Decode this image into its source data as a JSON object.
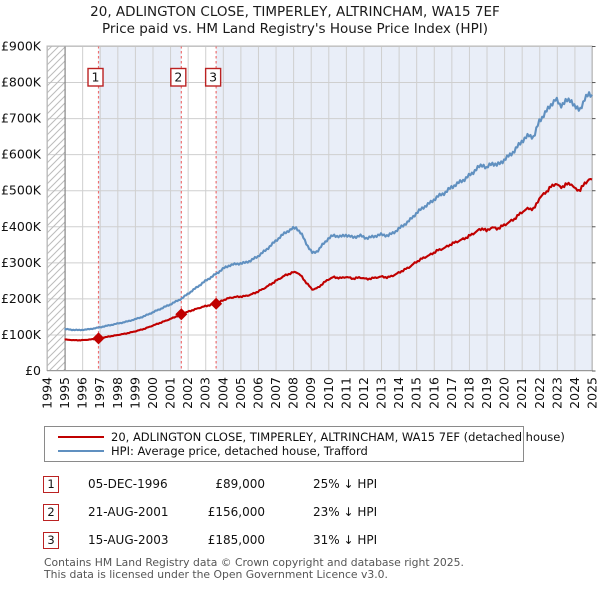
{
  "title": {
    "line1": "20, ADLINGTON CLOSE, TIMPERLEY, ALTRINCHAM, WA15 7EF",
    "line2": "Price paid vs. HM Land Registry's House Price Index (HPI)"
  },
  "chart_data": {
    "type": "line",
    "title": "20, ADLINGTON CLOSE, TIMPERLEY, ALTRINCHAM, WA15 7EF",
    "subtitle": "Price paid vs. HM Land Registry's House Price Index (HPI)",
    "x_axis": {
      "range": [
        1994,
        2025
      ],
      "ticks": [
        1994,
        1995,
        1996,
        1997,
        1998,
        1999,
        2000,
        2001,
        2002,
        2003,
        2004,
        2005,
        2006,
        2007,
        2008,
        2009,
        2010,
        2011,
        2012,
        2013,
        2014,
        2015,
        2016,
        2017,
        2018,
        2019,
        2020,
        2021,
        2022,
        2023,
        2024,
        2025
      ]
    },
    "y_axis": {
      "range": [
        0,
        900000
      ],
      "tick_values": [
        0,
        100000,
        200000,
        300000,
        400000,
        500000,
        600000,
        700000,
        800000,
        900000
      ],
      "tick_labels": [
        "£0",
        "£100K",
        "£200K",
        "£300K",
        "£400K",
        "£500K",
        "£600K",
        "£700K",
        "£800K",
        "£900K"
      ]
    },
    "grid": true,
    "legend_position": "below",
    "series": [
      {
        "name": "20, ADLINGTON CLOSE, TIMPERLEY, ALTRINCHAM, WA15 7EF (detached house)",
        "role": "price-paid",
        "color": "#c00000"
      },
      {
        "name": "HPI: Average price, detached house, Trafford",
        "role": "hpi",
        "color": "#6090c0",
        "anchors_year_value": [
          [
            1995.0,
            115000
          ],
          [
            1995.4,
            113000
          ],
          [
            1995.8,
            112000
          ],
          [
            1996.2,
            113500
          ],
          [
            1996.6,
            116000
          ],
          [
            1996.93,
            119000
          ],
          [
            1997.4,
            124000
          ],
          [
            1998.0,
            130000
          ],
          [
            1998.5,
            135000
          ],
          [
            1999.0,
            142000
          ],
          [
            1999.5,
            150000
          ],
          [
            2000.0,
            161000
          ],
          [
            2000.5,
            172000
          ],
          [
            2001.0,
            183000
          ],
          [
            2001.64,
            199000
          ],
          [
            2002.0,
            212000
          ],
          [
            2002.5,
            230000
          ],
          [
            2003.0,
            248000
          ],
          [
            2003.62,
            268000
          ],
          [
            2004.0,
            282000
          ],
          [
            2004.4,
            292000
          ],
          [
            2004.8,
            296000
          ],
          [
            2005.2,
            298000
          ],
          [
            2005.6,
            305000
          ],
          [
            2006.0,
            317000
          ],
          [
            2006.4,
            332000
          ],
          [
            2006.8,
            350000
          ],
          [
            2007.2,
            368000
          ],
          [
            2007.6,
            384000
          ],
          [
            2008.0,
            394000
          ],
          [
            2008.2,
            396000
          ],
          [
            2008.5,
            376000
          ],
          [
            2008.8,
            348000
          ],
          [
            2009.1,
            325000
          ],
          [
            2009.4,
            332000
          ],
          [
            2009.7,
            350000
          ],
          [
            2010.0,
            366000
          ],
          [
            2010.3,
            375000
          ],
          [
            2010.7,
            371000
          ],
          [
            2011.0,
            376000
          ],
          [
            2011.4,
            369000
          ],
          [
            2011.8,
            374000
          ],
          [
            2012.2,
            367000
          ],
          [
            2012.6,
            372000
          ],
          [
            2013.0,
            377000
          ],
          [
            2013.4,
            374000
          ],
          [
            2013.8,
            385000
          ],
          [
            2014.2,
            400000
          ],
          [
            2014.6,
            415000
          ],
          [
            2015.0,
            436000
          ],
          [
            2015.4,
            452000
          ],
          [
            2015.8,
            465000
          ],
          [
            2016.2,
            482000
          ],
          [
            2016.6,
            492000
          ],
          [
            2017.0,
            508000
          ],
          [
            2017.4,
            520000
          ],
          [
            2017.8,
            532000
          ],
          [
            2018.2,
            548000
          ],
          [
            2018.5,
            562000
          ],
          [
            2018.8,
            572000
          ],
          [
            2019.0,
            560000
          ],
          [
            2019.3,
            576000
          ],
          [
            2019.6,
            569000
          ],
          [
            2019.9,
            580000
          ],
          [
            2020.2,
            592000
          ],
          [
            2020.6,
            610000
          ],
          [
            2021.0,
            636000
          ],
          [
            2021.4,
            652000
          ],
          [
            2021.7,
            648000
          ],
          [
            2022.0,
            692000
          ],
          [
            2022.4,
            718000
          ],
          [
            2022.7,
            740000
          ],
          [
            2022.95,
            752000
          ],
          [
            2023.2,
            735000
          ],
          [
            2023.5,
            746000
          ],
          [
            2023.8,
            752000
          ],
          [
            2024.05,
            728000
          ],
          [
            2024.3,
            724000
          ],
          [
            2024.6,
            752000
          ],
          [
            2024.85,
            770000
          ],
          [
            2025.0,
            763000
          ]
        ]
      }
    ],
    "sales": [
      {
        "label": "1",
        "date": "05-DEC-1996",
        "year_decimal": 1996.93,
        "price": 89000,
        "price_display": "£89,000",
        "vs_hpi": "25% ↓ HPI"
      },
      {
        "label": "2",
        "date": "21-AUG-2001",
        "year_decimal": 2001.64,
        "price": 156000,
        "price_display": "£156,000",
        "vs_hpi": "23% ↓ HPI"
      },
      {
        "label": "3",
        "date": "15-AUG-2003",
        "year_decimal": 2003.62,
        "price": 185000,
        "price_display": "£185,000",
        "vs_hpi": "31% ↓ HPI"
      }
    ],
    "shaded_periods": [
      [
        1996.93,
        2001.64
      ],
      [
        2003.62,
        2025.0
      ]
    ],
    "hatched_period": [
      1994,
      1995.0
    ],
    "colors": {
      "band": "#e9eef8",
      "grid": "#cfcfcf",
      "plot_border": "#b8b8b8",
      "axis_dark": "#999999",
      "hpi_start_line": "#888888",
      "sale_line": "#ee7070",
      "sale_box_border": "#bb2222",
      "hatch": "#bbbbbb",
      "tick": "#555555"
    }
  },
  "footer": {
    "line1": "Contains HM Land Registry data © Crown copyright and database right 2025.",
    "line2": "This data is licensed under the Open Government Licence v3.0."
  }
}
